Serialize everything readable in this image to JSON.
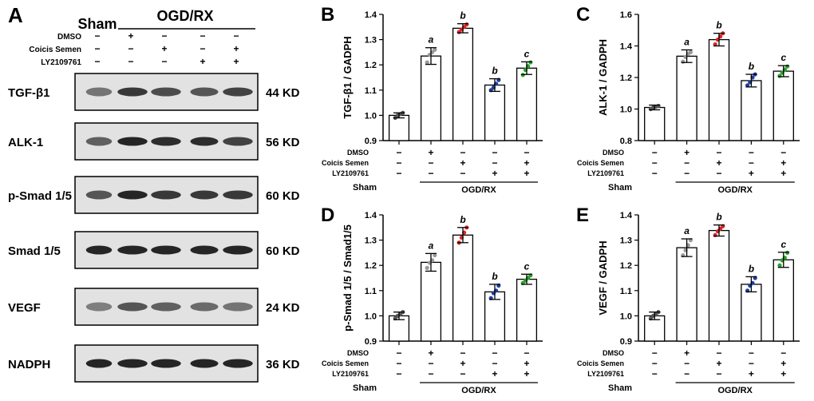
{
  "blot": {
    "letter": "A",
    "group_control": "Sham",
    "group_treated": "OGD/RX",
    "treatment_rows": [
      {
        "label": "DMSO",
        "marks": [
          "−",
          "+",
          "−",
          "−",
          "−"
        ]
      },
      {
        "label": "Coicis Semen",
        "marks": [
          "−",
          "−",
          "+",
          "−",
          "+"
        ]
      },
      {
        "label": "LY2109761",
        "marks": [
          "−",
          "−",
          "−",
          "+",
          "+"
        ]
      }
    ],
    "proteins": [
      {
        "name": "TGF-β1",
        "kd": "44 KD"
      },
      {
        "name": "ALK-1",
        "kd": "56 KD"
      },
      {
        "name": "p-Smad 1/5",
        "kd": "60 KD"
      },
      {
        "name": "Smad 1/5",
        "kd": "60 KD"
      },
      {
        "name": "VEGF",
        "kd": "24 KD"
      },
      {
        "name": "NADPH",
        "kd": "36 KD"
      }
    ]
  },
  "shared": {
    "sham_label": "Sham",
    "group_label": "OGD/RX",
    "treatment_rows": [
      {
        "label": "DMSO",
        "marks": [
          "−",
          "+",
          "−",
          "−",
          "−"
        ]
      },
      {
        "label": "Coicis Semen",
        "marks": [
          "−",
          "−",
          "+",
          "−",
          "+"
        ]
      },
      {
        "label": "LY2109761",
        "marks": [
          "−",
          "−",
          "−",
          "+",
          "+"
        ]
      }
    ]
  },
  "colors": {
    "bar_fill": "#ffffff",
    "bar_edge": "#000000",
    "dots": [
      "#555555",
      "#9a9a9a",
      "#d62728",
      "#1f3f9f",
      "#2ca02c"
    ]
  },
  "chart_data": [
    {
      "letter": "B",
      "type": "bar",
      "ylabel": "TGF-β1 / GADPH",
      "ylim": [
        0.9,
        1.4
      ],
      "yticks": [
        "0.9",
        "1.0",
        "1.1",
        "1.2",
        "1.3",
        "1.4"
      ],
      "categories": [
        "Sham",
        "DMSO",
        "Coicis Semen",
        "LY2109761",
        "Coicis Semen + LY2109761"
      ],
      "values": [
        1.0,
        1.235,
        1.345,
        1.12,
        1.187
      ],
      "errors": [
        0.01,
        0.033,
        0.018,
        0.025,
        0.025
      ],
      "sig": [
        "",
        "a",
        "b",
        "b",
        "c"
      ],
      "points": [
        [
          0.99,
          1.0,
          1.005,
          1.01
        ],
        [
          1.21,
          1.24,
          1.25,
          1.26
        ],
        [
          1.33,
          1.34,
          1.35,
          1.36
        ],
        [
          1.1,
          1.11,
          1.125,
          1.14
        ],
        [
          1.16,
          1.18,
          1.195,
          1.21
        ]
      ]
    },
    {
      "letter": "C",
      "type": "bar",
      "ylabel": "ALK-1 / GADPH",
      "ylim": [
        0.8,
        1.6
      ],
      "yticks": [
        "0.8",
        "1.0",
        "1.2",
        "1.4",
        "1.6"
      ],
      "categories": [
        "Sham",
        "DMSO",
        "Coicis Semen",
        "LY2109761",
        "Coicis Semen + LY2109761"
      ],
      "values": [
        1.01,
        1.335,
        1.44,
        1.18,
        1.24
      ],
      "errors": [
        0.015,
        0.04,
        0.04,
        0.04,
        0.035
      ],
      "sig": [
        "",
        "a",
        "b",
        "b",
        "c"
      ],
      "points": [
        [
          1.0,
          1.01,
          1.015,
          1.02
        ],
        [
          1.3,
          1.33,
          1.35,
          1.36
        ],
        [
          1.41,
          1.44,
          1.46,
          1.48
        ],
        [
          1.15,
          1.17,
          1.2,
          1.22
        ],
        [
          1.21,
          1.23,
          1.25,
          1.27
        ]
      ]
    },
    {
      "letter": "D",
      "type": "bar",
      "ylabel": "p-Smad 1/5 / Smad1/5",
      "ylim": [
        0.9,
        1.4
      ],
      "yticks": [
        "0.9",
        "1.0",
        "1.1",
        "1.2",
        "1.3",
        "1.4"
      ],
      "categories": [
        "Sham",
        "DMSO",
        "Coicis Semen",
        "LY2109761",
        "Coicis Semen + LY2109761"
      ],
      "values": [
        1.0,
        1.212,
        1.32,
        1.095,
        1.145
      ],
      "errors": [
        0.015,
        0.035,
        0.03,
        0.03,
        0.02
      ],
      "sig": [
        "",
        "a",
        "b",
        "b",
        "c"
      ],
      "points": [
        [
          0.99,
          1.0,
          1.005,
          1.015
        ],
        [
          1.19,
          1.21,
          1.22,
          1.24
        ],
        [
          1.29,
          1.31,
          1.33,
          1.35
        ],
        [
          1.07,
          1.09,
          1.1,
          1.12
        ],
        [
          1.13,
          1.14,
          1.15,
          1.16
        ]
      ]
    },
    {
      "letter": "E",
      "type": "bar",
      "ylabel": "VEGF / GADPH",
      "ylim": [
        0.9,
        1.4
      ],
      "yticks": [
        "0.9",
        "1.0",
        "1.1",
        "1.2",
        "1.3",
        "1.4"
      ],
      "categories": [
        "Sham",
        "DMSO",
        "Coicis Semen",
        "LY2109761",
        "Coicis Semen + LY2109761"
      ],
      "values": [
        1.0,
        1.27,
        1.338,
        1.125,
        1.222
      ],
      "errors": [
        0.015,
        0.035,
        0.022,
        0.03,
        0.03
      ],
      "sig": [
        "",
        "a",
        "b",
        "b",
        "c"
      ],
      "points": [
        [
          0.99,
          1.0,
          1.005,
          1.015
        ],
        [
          1.24,
          1.26,
          1.28,
          1.3
        ],
        [
          1.32,
          1.335,
          1.345,
          1.355
        ],
        [
          1.1,
          1.12,
          1.13,
          1.15
        ],
        [
          1.2,
          1.22,
          1.23,
          1.25
        ]
      ]
    }
  ]
}
